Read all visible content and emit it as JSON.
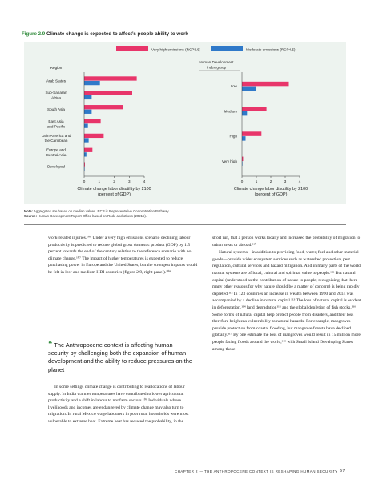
{
  "figure": {
    "number": "Figure 2.9",
    "title": "Climate change is expected to affect’s people ability to work"
  },
  "legend": {
    "high_label": "Very high emissions (RCP8.5)",
    "moderate_label": "Moderate emissions (RCP4.5)"
  },
  "colors": {
    "high": "#e8356a",
    "moderate": "#2f79c9",
    "panel": "#edf3ef",
    "accent": "#2f8a3a"
  },
  "chart_data": [
    {
      "type": "bar",
      "orientation": "horizontal",
      "header": "Region",
      "categories": [
        "Arab States",
        "Sub-Saharan Africa",
        "South Asia",
        "East Asia and Pacific",
        "Latin America and the Caribbean",
        "Europe and Central Asia",
        "Developed"
      ],
      "category_lines": [
        [
          "Arab States"
        ],
        [
          "Sub-Saharan",
          "Africa"
        ],
        [
          "South Asia"
        ],
        [
          "East Asia",
          "and Pacific"
        ],
        [
          "Latin America and",
          "the Caribbean"
        ],
        [
          "Europe and",
          "Central Asia"
        ],
        [
          "Developed"
        ]
      ],
      "series": [
        {
          "name": "Very high emissions (RCP8.5)",
          "values": [
            3.5,
            3.2,
            2.6,
            1.1,
            1.3,
            0.55,
            0.05
          ]
        },
        {
          "name": "Moderate emissions (RCP4.5)",
          "values": [
            1.05,
            0.5,
            0.5,
            0.25,
            0.3,
            0.15,
            0.03
          ]
        }
      ],
      "xlim": [
        0,
        4
      ],
      "xticks": [
        "0",
        "1",
        "2",
        "3",
        "4"
      ],
      "xlabel": [
        "Climate change labor disutility by 2100",
        "(percent of GDP)"
      ]
    },
    {
      "type": "bar",
      "orientation": "horizontal",
      "header": [
        "Human Development",
        "Index group"
      ],
      "categories": [
        "Low",
        "Medium",
        "High",
        "Very high"
      ],
      "category_lines": [
        [
          "Low"
        ],
        [
          "Medium"
        ],
        [
          "High"
        ],
        [
          "Very high"
        ]
      ],
      "series": [
        {
          "name": "Very high emissions (RCP8.5)",
          "values": [
            3.25,
            1.7,
            1.35,
            0.08
          ]
        },
        {
          "name": "Moderate emissions (RCP4.5)",
          "values": [
            1.0,
            0.35,
            0.25,
            0.03
          ]
        }
      ],
      "xlim": [
        0,
        4
      ],
      "xticks": [
        "0",
        "1",
        "2",
        "3",
        "4"
      ],
      "xlabel": [
        "Climate change labor disutility by 2100",
        "(percent of GDP)"
      ]
    }
  ],
  "note": {
    "note_label": "Note:",
    "note_text": "Aggregates are based on median values. RCP is Representative Concentration Pathway.",
    "source_label": "Source:",
    "source_text": "Human Development Report Office based on Rode and others (2021b)."
  },
  "body": {
    "left": [
      "work-related injuries.¹⁰⁶ Under a very high emissions scenario declining labour productivity is predicted to reduce global gross domestic product (GDP) by 1.5 percent towards the end of the century relative to the reference scenario with no climate change.¹⁰⁷ The impact of higher temperatures is expected to reduce purchasing power in Europe and the United States, but the strongest impacts would be felt in low and medium HDI countries (figure 2.9, right panel).¹⁰⁸",
      "In some settings climate change is contributing to reallocations of labour supply. In India warmer temperatures have contributed to lower agricultural productivity and a shift in labour to nonfarm sectors.¹⁰⁹ Individuals whose livelihoods and incomes are endangered by climate change may also turn to migration. In rural Mexico wage labourers in poor rural households were most vulnerable to extreme heat. Extreme heat has reduced the probability, in the"
    ],
    "quote": "The Anthropocene context is affecting human security by challenging both the expansion of human development and the ability to reduce pressures on the planet",
    "right": [
      "short run, that a person works locally and increased the probability of migration to urban areas or abroad.¹¹⁰",
      "Natural systems—in addition to providing food, water, fuel and other material goods—provide wider ecosystem services such as watershed protection, pest regulation, cultural services and hazard mitigation. And in many parts of the world, natural systems are of local, cultural and spiritual value to people.¹¹¹ But natural capital (understood as the contribution of nature to people, recognizing that there many other reasons for why nature should be a matter of concern) is being rapidly depleted.¹¹² In 123 countries an increase in wealth between 1990 and 2014 was accompanied by a decline in natural capital.¹¹³ The loss of natural capital is evident in deforestation,¹¹⁴ land degradation¹¹⁵ and the global depletion of fish stocks.¹¹⁶ Some forms of natural capital help protect people from disasters, and their loss therefore heightens vulnerability to natural hazards. For example, mangroves provide protection from coastal flooding, but mangrove forests have declined globally.¹¹⁷ By one estimate the loss of mangroves would result in 15 million more people facing floods around the world,¹¹⁸ with Small Island Developing States among those"
    ]
  },
  "footer": {
    "chapter": "CHAPTER 2 — THE ANTHROPOCENE CONTEXT IS RESHAPING HUMAN SECURITY",
    "page": "57"
  }
}
